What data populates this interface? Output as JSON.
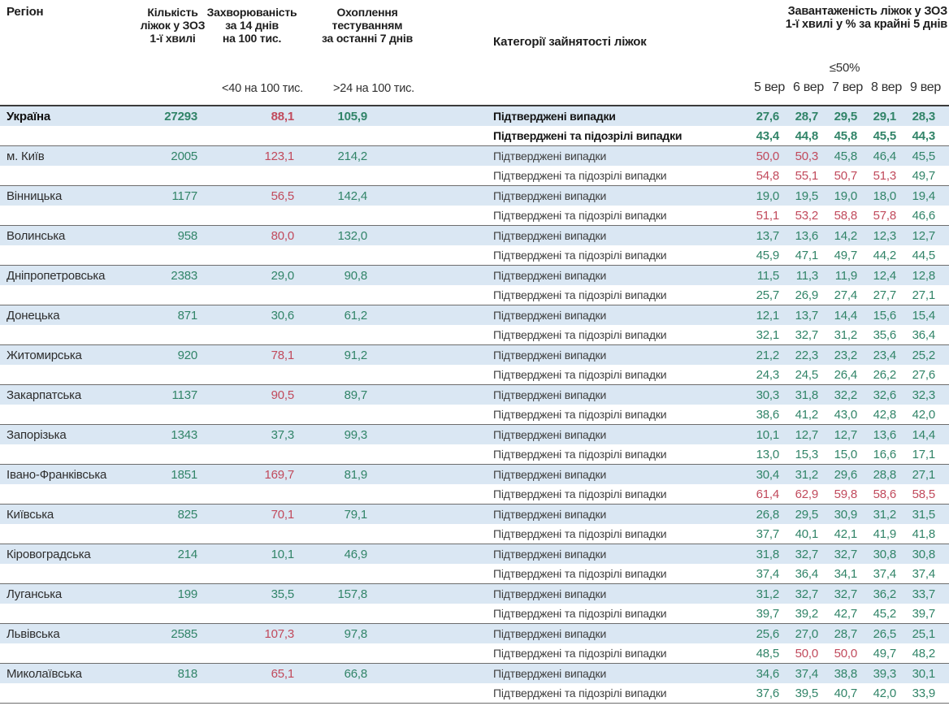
{
  "chart_data": {
    "type": "table",
    "columns": {
      "region": "Регіон",
      "beds": "Кількість\nліжок у ЗОЗ\n1-ї хвилі",
      "incidence": "Захворюваність\nза 14 днів\nна 100 тис.",
      "incidence_threshold": "<40 на 100 тис.",
      "testing": "Охоплення\nтестуванням\nза останні 7 днів",
      "testing_threshold": ">24 на 100 тис.",
      "category": "Категорії зайнятості ліжок",
      "occupancy": "Завантаженість ліжок у ЗОЗ\n1-ї хвилі у % за крайні 5 днів",
      "occupancy_threshold": "≤50%"
    },
    "dates": [
      "5 вер",
      "6 вер",
      "7 вер",
      "8 вер",
      "9 вер"
    ],
    "categories": [
      "Підтверджені випадки",
      "Підтверджені та підозрілі випадки"
    ],
    "thresholds": {
      "incidence_red_at": 40,
      "occupancy_red_at": 50
    },
    "regions": [
      {
        "name": "Україна",
        "beds": "27293",
        "incidence": "88,1",
        "testing": "105,9",
        "confirmed": [
          "27,6",
          "28,7",
          "29,5",
          "29,1",
          "28,3"
        ],
        "confirmed_suspected": [
          "43,4",
          "44,8",
          "45,8",
          "45,5",
          "44,3"
        ]
      },
      {
        "name": "м. Київ",
        "beds": "2005",
        "incidence": "123,1",
        "testing": "214,2",
        "confirmed": [
          "50,0",
          "50,3",
          "45,8",
          "46,4",
          "45,5"
        ],
        "confirmed_suspected": [
          "54,8",
          "55,1",
          "50,7",
          "51,3",
          "49,7"
        ]
      },
      {
        "name": "Вінницька",
        "beds": "1177",
        "incidence": "56,5",
        "testing": "142,4",
        "confirmed": [
          "19,0",
          "19,5",
          "19,0",
          "18,0",
          "19,4"
        ],
        "confirmed_suspected": [
          "51,1",
          "53,2",
          "58,8",
          "57,8",
          "46,6"
        ]
      },
      {
        "name": "Волинська",
        "beds": "958",
        "incidence": "80,0",
        "testing": "132,0",
        "confirmed": [
          "13,7",
          "13,6",
          "14,2",
          "12,3",
          "12,7"
        ],
        "confirmed_suspected": [
          "45,9",
          "47,1",
          "49,7",
          "44,2",
          "44,5"
        ]
      },
      {
        "name": "Дніпропетровська",
        "beds": "2383",
        "incidence": "29,0",
        "testing": "90,8",
        "confirmed": [
          "11,5",
          "11,3",
          "11,9",
          "12,4",
          "12,8"
        ],
        "confirmed_suspected": [
          "25,7",
          "26,9",
          "27,4",
          "27,7",
          "27,1"
        ]
      },
      {
        "name": "Донецька",
        "beds": "871",
        "incidence": "30,6",
        "testing": "61,2",
        "confirmed": [
          "12,1",
          "13,7",
          "14,4",
          "15,6",
          "15,4"
        ],
        "confirmed_suspected": [
          "32,1",
          "32,7",
          "31,2",
          "35,6",
          "36,4"
        ]
      },
      {
        "name": "Житомирська",
        "beds": "920",
        "incidence": "78,1",
        "testing": "91,2",
        "confirmed": [
          "21,2",
          "22,3",
          "23,2",
          "23,4",
          "25,2"
        ],
        "confirmed_suspected": [
          "24,3",
          "24,5",
          "26,4",
          "26,2",
          "27,6"
        ]
      },
      {
        "name": "Закарпатська",
        "beds": "1137",
        "incidence": "90,5",
        "testing": "89,7",
        "confirmed": [
          "30,3",
          "31,8",
          "32,2",
          "32,6",
          "32,3"
        ],
        "confirmed_suspected": [
          "38,6",
          "41,2",
          "43,0",
          "42,8",
          "42,0"
        ]
      },
      {
        "name": "Запорізька",
        "beds": "1343",
        "incidence": "37,3",
        "testing": "99,3",
        "confirmed": [
          "10,1",
          "12,7",
          "12,7",
          "13,6",
          "14,4"
        ],
        "confirmed_suspected": [
          "13,0",
          "15,3",
          "15,0",
          "16,6",
          "17,1"
        ]
      },
      {
        "name": "Івано-Франківська",
        "beds": "1851",
        "incidence": "169,7",
        "testing": "81,9",
        "confirmed": [
          "30,4",
          "31,2",
          "29,6",
          "28,8",
          "27,1"
        ],
        "confirmed_suspected": [
          "61,4",
          "62,9",
          "59,8",
          "58,6",
          "58,5"
        ]
      },
      {
        "name": "Київська",
        "beds": "825",
        "incidence": "70,1",
        "testing": "79,1",
        "confirmed": [
          "26,8",
          "29,5",
          "30,9",
          "31,2",
          "31,5"
        ],
        "confirmed_suspected": [
          "37,7",
          "40,1",
          "42,1",
          "41,9",
          "41,8"
        ]
      },
      {
        "name": "Кіровоградська",
        "beds": "214",
        "incidence": "10,1",
        "testing": "46,9",
        "confirmed": [
          "31,8",
          "32,7",
          "32,7",
          "30,8",
          "30,8"
        ],
        "confirmed_suspected": [
          "37,4",
          "36,4",
          "34,1",
          "37,4",
          "37,4"
        ]
      },
      {
        "name": "Луганська",
        "beds": "199",
        "incidence": "35,5",
        "testing": "157,8",
        "confirmed": [
          "31,2",
          "32,7",
          "32,7",
          "36,2",
          "33,7"
        ],
        "confirmed_suspected": [
          "39,7",
          "39,2",
          "42,7",
          "45,2",
          "39,7"
        ]
      },
      {
        "name": "Львівська",
        "beds": "2585",
        "incidence": "107,3",
        "testing": "97,8",
        "confirmed": [
          "25,6",
          "27,0",
          "28,7",
          "26,5",
          "25,1"
        ],
        "confirmed_suspected": [
          "48,5",
          "50,0",
          "50,0",
          "49,7",
          "48,2"
        ]
      },
      {
        "name": "Миколаївська",
        "beds": "818",
        "incidence": "65,1",
        "testing": "66,8",
        "confirmed": [
          "34,6",
          "37,4",
          "38,8",
          "39,3",
          "30,1"
        ],
        "confirmed_suspected": [
          "37,6",
          "39,5",
          "40,7",
          "42,0",
          "33,9"
        ]
      }
    ]
  },
  "colors": {
    "value_ok": "#318468",
    "value_alert": "#c14a5c",
    "row_highlight": "#dae7f3",
    "separator": "#6d6d6d",
    "header_text": "#1d1d1d"
  }
}
